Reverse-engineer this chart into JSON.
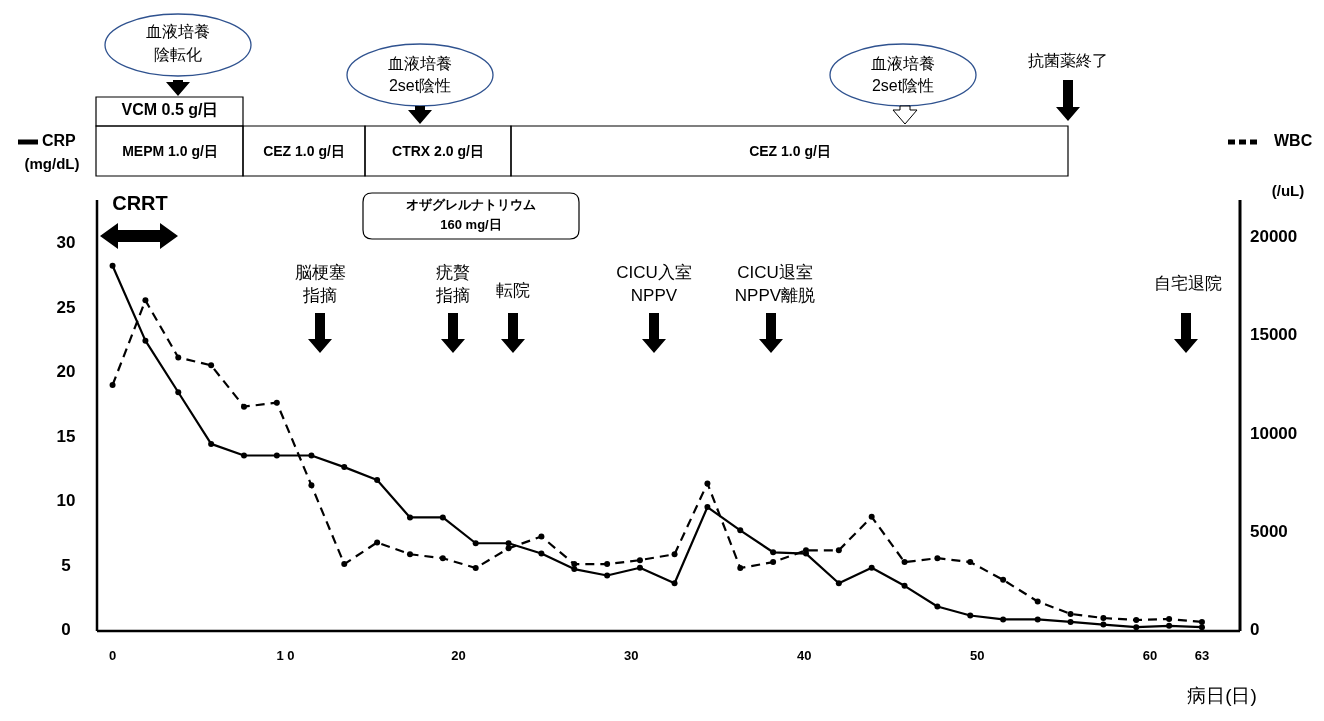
{
  "chart_data": {
    "type": "line",
    "xlabel": "病日(日)",
    "ylabel": "(mg/dL)",
    "y2label": "(/uL)",
    "x": [
      0,
      1.9,
      3.8,
      5.7,
      7.6,
      9.5,
      11.5,
      13.4,
      15.3,
      17.2,
      19.1,
      21,
      22.9,
      24.8,
      26.7,
      28.6,
      30.5,
      32.5,
      34.4,
      36.3,
      38.2,
      40.1,
      42,
      43.9,
      45.8,
      47.7,
      49.6,
      51.5,
      53.5,
      55.4,
      57.3,
      59.2,
      61.1,
      63
    ],
    "series": [
      {
        "name": "CRP",
        "color": "#000000",
        "line_style": "solid",
        "values": [
          28.3,
          22.5,
          18.5,
          14.5,
          13.6,
          13.6,
          13.6,
          12.7,
          11.7,
          8.8,
          8.8,
          6.8,
          6.8,
          6.0,
          4.8,
          4.3,
          4.9,
          3.7,
          9.6,
          7.8,
          6.1,
          6.0,
          3.7,
          4.9,
          3.5,
          1.9,
          1.2,
          0.9,
          0.9,
          0.7,
          0.5,
          0.3,
          0.4,
          0.3
        ]
      },
      {
        "name": "WBC",
        "color": "#000000",
        "line_style": "dashed",
        "axis": "y2",
        "values": [
          12500,
          16800,
          13900,
          13500,
          11400,
          11600,
          7400,
          3400,
          4500,
          3900,
          3700,
          3200,
          4200,
          4800,
          3400,
          3400,
          3600,
          3900,
          7500,
          3200,
          3500,
          4100,
          4100,
          5800,
          3500,
          3700,
          3500,
          2600,
          1500,
          870,
          660,
          560,
          610,
          460
        ]
      }
    ],
    "marker": "circle",
    "legend": "top",
    "xlim": [
      -0.9,
      65.2
    ],
    "xticks": [
      0,
      {
        "value": 10,
        "label": "1 0"
      },
      20,
      30,
      40,
      50,
      60,
      63
    ],
    "ylim": [
      0,
      33.4
    ],
    "yticks": [
      0,
      5,
      10,
      15,
      20,
      25,
      30
    ],
    "y2lim": [
      0,
      21900
    ],
    "y2ticks": [
      0,
      5000,
      10000,
      15000,
      20000
    ],
    "annotations": [
      "血液培養",
      "陰転化",
      "VCM 0.5 g/日",
      "MEPM 1.0 g/日",
      "CEZ 1.0 g/日",
      "CTRX 2.0 g/日",
      "CEZ 1.0 g/日",
      "血液培養",
      "2set陰性",
      "血液培養",
      "2set陰性",
      "抗菌薬終了",
      "オザグレルナトリウム",
      "160 mg/日",
      "CRRT",
      "脳梗塞",
      "指摘",
      "疣贅",
      "指摘",
      "転院",
      "CICU入室",
      "NPPV",
      "CICU退室",
      "NPPV離脱",
      "自宅退院"
    ]
  }
}
